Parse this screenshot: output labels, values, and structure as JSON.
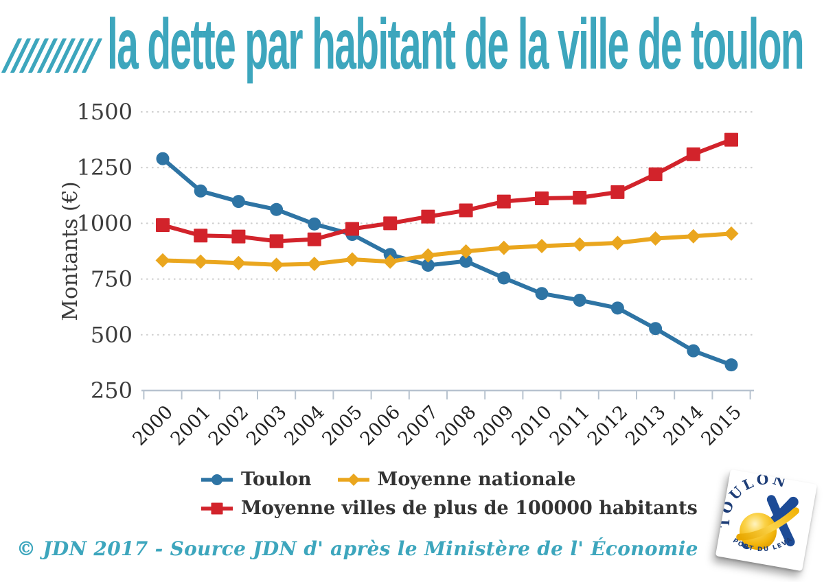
{
  "title": {
    "text": "la dette par habitant de la ville de toulon",
    "hatch_count": 10
  },
  "colors": {
    "accent_teal": "#3da6bd",
    "toulon_blue": "#2e74a4",
    "national_yellow": "#eaa61e",
    "cities_red": "#d2232b",
    "axis": "#b8c3cf",
    "grid": "#cfcfcf",
    "legend_text": "#333333",
    "logo_navy": "#1d3d77",
    "logo_gold": "#f2b40a"
  },
  "chart_data": {
    "type": "line",
    "x": [
      2000,
      2001,
      2002,
      2003,
      2004,
      2005,
      2006,
      2007,
      2008,
      2009,
      2010,
      2011,
      2012,
      2013,
      2014,
      2015
    ],
    "series": [
      {
        "name": "Toulon",
        "marker": "circle",
        "color": "#2e74a4",
        "values": [
          1290,
          1145,
          1098,
          1062,
          997,
          950,
          860,
          812,
          830,
          755,
          685,
          655,
          620,
          528,
          428,
          365
        ]
      },
      {
        "name": "Moyenne nationale",
        "marker": "diamond",
        "color": "#eaa61e",
        "values": [
          834,
          828,
          822,
          814,
          818,
          838,
          828,
          856,
          874,
          890,
          898,
          905,
          912,
          932,
          942,
          954
        ]
      },
      {
        "name": "Moyenne villes de plus de 100000 habitants",
        "marker": "square",
        "color": "#d2232b",
        "values": [
          992,
          945,
          941,
          920,
          928,
          975,
          1000,
          1030,
          1058,
          1098,
          1112,
          1115,
          1140,
          1220,
          1310,
          1375
        ]
      }
    ],
    "ylabel": "Montants (€)",
    "yticks": [
      250,
      500,
      750,
      1000,
      1250,
      1500
    ],
    "ylim": [
      250,
      1500
    ],
    "grid": true,
    "legend_position": "bottom-left"
  },
  "footer": {
    "credit": "© JDN 2017 - Source JDN d' après le Ministère de l' Économie"
  },
  "logo": {
    "city": "TOULON",
    "tagline": "PORT DU LEVANT"
  }
}
